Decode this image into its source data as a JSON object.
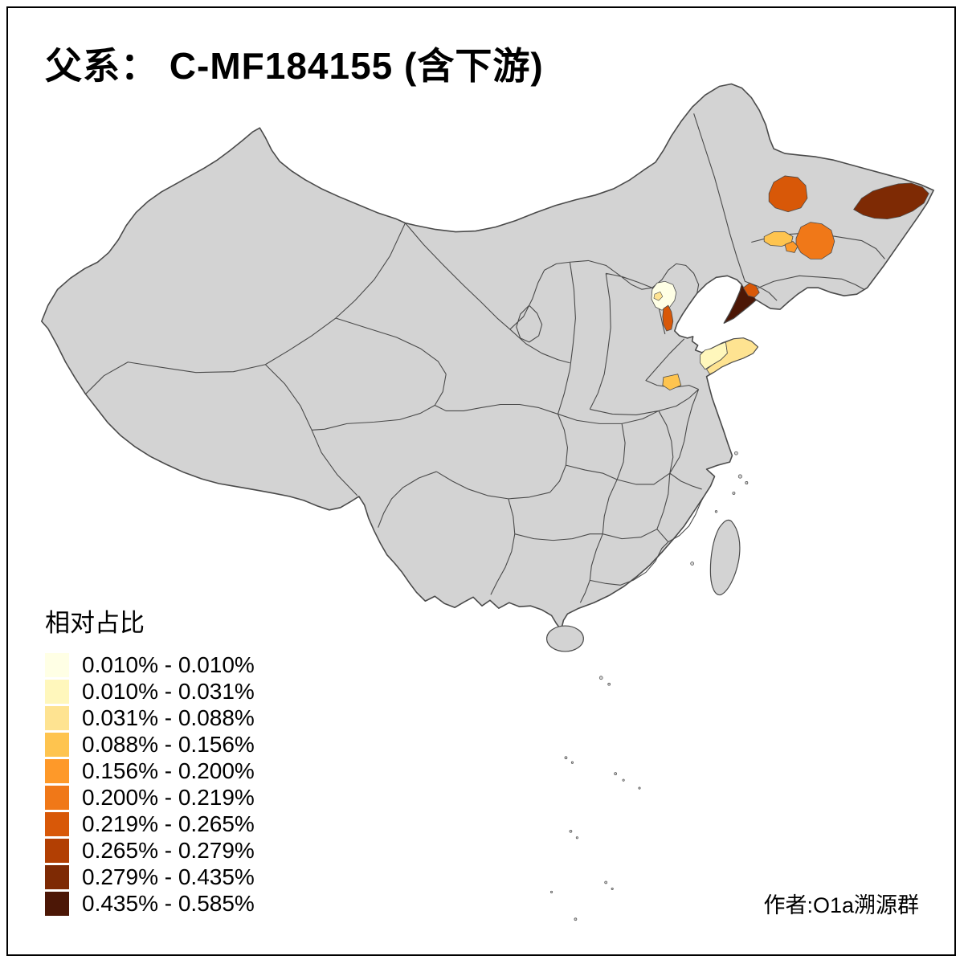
{
  "title": "父系： C-MF184155 (含下游)",
  "legend": {
    "title": "相对占比",
    "items": [
      {
        "label": "0.010% - 0.010%",
        "color": "#FFFFE5"
      },
      {
        "label": "0.010% - 0.031%",
        "color": "#FFF7BC"
      },
      {
        "label": "0.031% - 0.088%",
        "color": "#FEE391"
      },
      {
        "label": "0.088% - 0.156%",
        "color": "#FEC44F"
      },
      {
        "label": "0.156% - 0.200%",
        "color": "#FE9929"
      },
      {
        "label": "0.200% - 0.219%",
        "color": "#F07818"
      },
      {
        "label": "0.219% - 0.265%",
        "color": "#D85808"
      },
      {
        "label": "0.265% - 0.279%",
        "color": "#B23F03"
      },
      {
        "label": "0.279% - 0.435%",
        "color": "#7E2A04"
      },
      {
        "label": "0.435% - 0.585%",
        "color": "#4C1706"
      }
    ]
  },
  "credit": "作者:O1a溯源群",
  "map": {
    "base_fill": "#D3D3D3",
    "border_color": "#4A4A4A",
    "sea_color": "#FFFFFF",
    "regions": [
      {
        "name": "heilongjiang-west",
        "class": 7,
        "color": "#D85808"
      },
      {
        "name": "heilongjiang-far-east",
        "class": 9,
        "color": "#7E2A04"
      },
      {
        "name": "jilin-central",
        "class": 6,
        "color": "#F07818"
      },
      {
        "name": "jilin-west-strip",
        "class": 4,
        "color": "#FEC44F"
      },
      {
        "name": "jilin-small",
        "class": 5,
        "color": "#FE9929"
      },
      {
        "name": "liaodong-peninsula",
        "class": 10,
        "color": "#4C1706"
      },
      {
        "name": "liaodong-north-tip",
        "class": 7,
        "color": "#D85808"
      },
      {
        "name": "beijing",
        "class": 1,
        "color": "#FFFFE5"
      },
      {
        "name": "beijing-spot",
        "class": 3,
        "color": "#FEE391"
      },
      {
        "name": "tianjin",
        "class": 7,
        "color": "#D85808"
      },
      {
        "name": "shandong-peninsula-west",
        "class": 2,
        "color": "#FFF7BC"
      },
      {
        "name": "shandong-peninsula-east",
        "class": 3,
        "color": "#FEE391"
      },
      {
        "name": "shandong-central",
        "class": 4,
        "color": "#FEC44F"
      }
    ]
  }
}
